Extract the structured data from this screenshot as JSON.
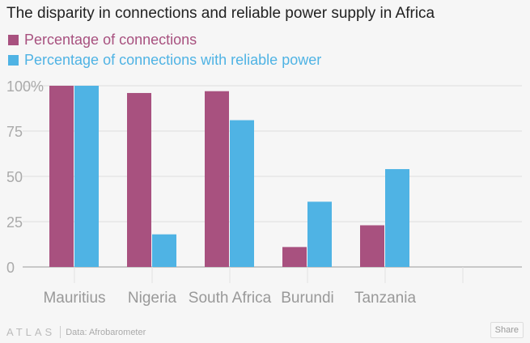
{
  "chart_data": {
    "type": "bar",
    "title": "The disparity in connections and reliable power supply in Africa",
    "categories": [
      "Mauritius",
      "Nigeria",
      "South Africa",
      "Burundi",
      "Tanzania",
      ""
    ],
    "series": [
      {
        "name": "Percentage of connections",
        "color": "#a8517f",
        "values": [
          100,
          96,
          97,
          11,
          23,
          null
        ]
      },
      {
        "name": "Percentage of connections with reliable power",
        "color": "#4fb3e4",
        "values": [
          100,
          18,
          81,
          36,
          54,
          null
        ]
      }
    ],
    "yticks": [
      "0",
      "25",
      "50",
      "75",
      "100%"
    ],
    "ytick_values": [
      0,
      25,
      50,
      75,
      100
    ],
    "ylim": [
      0,
      100
    ],
    "grid": true,
    "legend": "top-left"
  },
  "footer": {
    "logo": "ATLAS",
    "source": "Data: Afrobarometer",
    "share": "Share"
  }
}
